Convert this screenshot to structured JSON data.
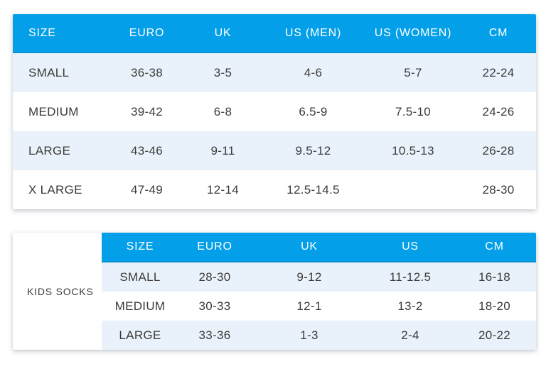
{
  "colors": {
    "header_bg": "#039fe8",
    "header_border": "#0b90d0",
    "header_text": "#ffffff",
    "row_bg": "#ffffff",
    "row_alt_bg": "#e9f2fb",
    "body_text": "#3c3a38"
  },
  "chart_data": [
    {
      "type": "table",
      "columns": [
        "SIZE",
        "EURO",
        "UK",
        "US (MEN)",
        "US (WOMEN)",
        "CM"
      ],
      "rows": [
        [
          "SMALL",
          "36-38",
          "3-5",
          "4-6",
          "5-7",
          "22-24"
        ],
        [
          "MEDIUM",
          "39-42",
          "6-8",
          "6.5-9",
          "7.5-10",
          "24-26"
        ],
        [
          "LARGE",
          "43-46",
          "9-11",
          "9.5-12",
          "10.5-13",
          "26-28"
        ],
        [
          "X LARGE",
          "47-49",
          "12-14",
          "12.5-14.5",
          "",
          "28-30"
        ]
      ]
    },
    {
      "type": "table",
      "label": "KIDS SOCKS",
      "columns": [
        "SIZE",
        "EURO",
        "UK",
        "US",
        "CM"
      ],
      "rows": [
        [
          "SMALL",
          "28-30",
          "9-12",
          "11-12.5",
          "16-18"
        ],
        [
          "MEDIUM",
          "30-33",
          "12-1",
          "13-2",
          "18-20"
        ],
        [
          "LARGE",
          "33-36",
          "1-3",
          "2-4",
          "20-22"
        ]
      ]
    }
  ]
}
